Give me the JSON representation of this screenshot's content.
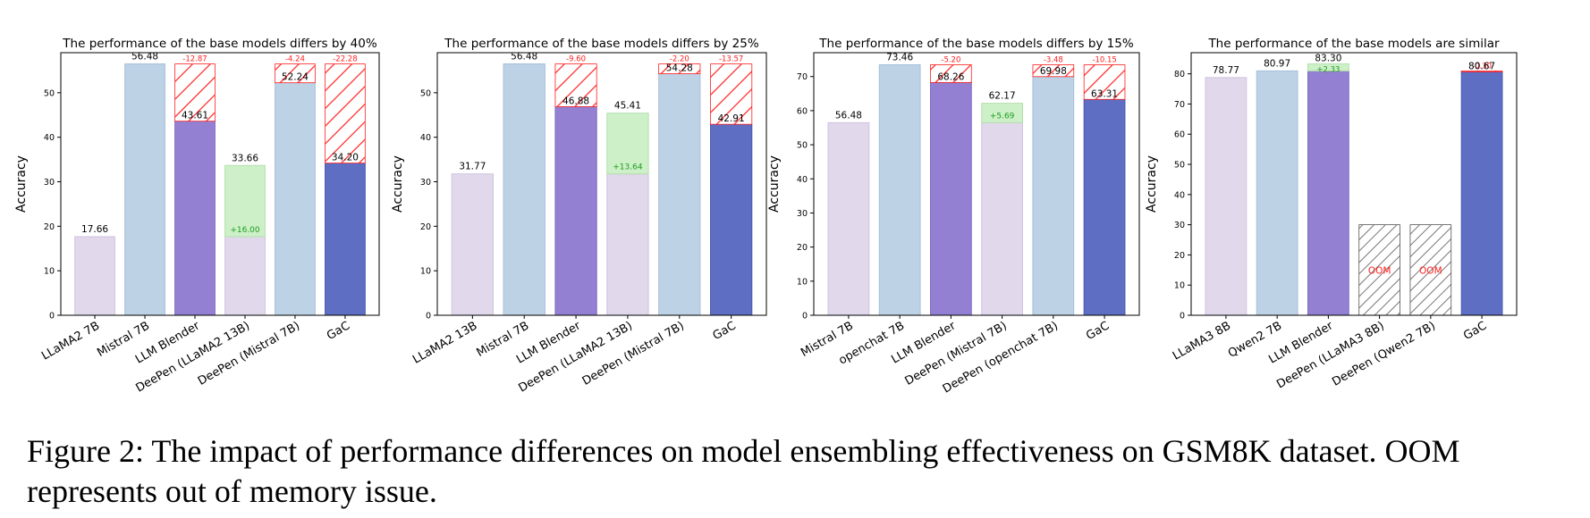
{
  "caption": "Figure 2: The impact of performance differences on model ensembling effectiveness on GSM8K dataset. OOM represents out of memory issue.",
  "colors": {
    "lavender": "#e1d8eb",
    "lightblue": "#bed2e6",
    "purple": "#9480d2",
    "green": "#cdf0c8",
    "darkblue": "#5e6ec2",
    "red": "#ff2020",
    "greentext": "#1d9c1d"
  },
  "chart_data": [
    {
      "type": "bar",
      "title": "The performance of the base models differs by 40%",
      "ylabel": "Accuracy",
      "ylim": [
        0,
        59
      ],
      "yticks": [
        0,
        10,
        20,
        30,
        40,
        50
      ],
      "categories": [
        "LLaMA2 7B",
        "Mistral 7B",
        "LLM Blender",
        "DeePen (LLaMA2 13B)",
        "DeePen (Mistral 7B)",
        "GaC"
      ],
      "bars": [
        {
          "value": 17.66,
          "label": "17.66",
          "color": "lavender"
        },
        {
          "value": 56.48,
          "label": "56.48",
          "color": "lightblue"
        },
        {
          "value": 43.61,
          "label": "43.61",
          "color": "purple",
          "base": 56.48,
          "delta": "-12.87"
        },
        {
          "value": 33.66,
          "label": "33.66",
          "color": "green",
          "base": 17.66,
          "delta": "+16.00",
          "base_color": "lavender"
        },
        {
          "value": 52.24,
          "label": "52.24",
          "color": "lightblue",
          "base": 56.48,
          "delta": "-4.24"
        },
        {
          "value": 34.2,
          "label": "34.20",
          "color": "darkblue",
          "base": 56.48,
          "delta": "-22.28"
        }
      ]
    },
    {
      "type": "bar",
      "title": "The performance of the base models differs by 25%",
      "ylabel": "Accuracy",
      "ylim": [
        0,
        59
      ],
      "yticks": [
        0,
        10,
        20,
        30,
        40,
        50
      ],
      "categories": [
        "LLaMA2 13B",
        "Mistral 7B",
        "LLM Blender",
        "DeePen (LLaMA2 13B)",
        "DeePen (Mistral 7B)",
        "GaC"
      ],
      "bars": [
        {
          "value": 31.77,
          "label": "31.77",
          "color": "lavender"
        },
        {
          "value": 56.48,
          "label": "56.48",
          "color": "lightblue"
        },
        {
          "value": 46.88,
          "label": "46.88",
          "color": "purple",
          "base": 56.48,
          "delta": "-9.60"
        },
        {
          "value": 45.41,
          "label": "45.41",
          "color": "green",
          "base": 31.77,
          "delta": "+13.64",
          "base_color": "lavender"
        },
        {
          "value": 54.28,
          "label": "54.28",
          "color": "lightblue",
          "base": 56.48,
          "delta": "-2.20"
        },
        {
          "value": 42.91,
          "label": "42.91",
          "color": "darkblue",
          "base": 56.48,
          "delta": "-13.57"
        }
      ]
    },
    {
      "type": "bar",
      "title": "The performance of the base models differs by 15%",
      "ylabel": "Accuracy",
      "ylim": [
        0,
        77
      ],
      "yticks": [
        0,
        10,
        20,
        30,
        40,
        50,
        60,
        70
      ],
      "categories": [
        "Mistral 7B",
        "openchat 7B",
        "LLM Blender",
        "DeePen (Mistral 7B)",
        "DeePen (openchat 7B)",
        "GaC"
      ],
      "bars": [
        {
          "value": 56.48,
          "label": "56.48",
          "color": "lavender"
        },
        {
          "value": 73.46,
          "label": "73.46",
          "color": "lightblue"
        },
        {
          "value": 68.26,
          "label": "68.26",
          "color": "purple",
          "base": 73.46,
          "delta": "-5.20"
        },
        {
          "value": 62.17,
          "label": "62.17",
          "color": "green",
          "base": 56.48,
          "delta": "+5.69",
          "base_color": "lavender"
        },
        {
          "value": 69.98,
          "label": "69.98",
          "color": "lightblue",
          "base": 73.46,
          "delta": "-3.48"
        },
        {
          "value": 63.31,
          "label": "63.31",
          "color": "darkblue",
          "base": 73.46,
          "delta": "-10.15"
        }
      ]
    },
    {
      "type": "bar",
      "title": "The performance of the base models are similar",
      "ylabel": "Accuracy",
      "ylim": [
        0,
        87
      ],
      "yticks": [
        0,
        10,
        20,
        30,
        40,
        50,
        60,
        70,
        80
      ],
      "categories": [
        "LLaMA3 8B",
        "Qwen2 7B",
        "LLM Blender",
        "DeePen (LLaMA3 8B)",
        "DeePen (Qwen2 7B)",
        "GaC"
      ],
      "bars": [
        {
          "value": 78.77,
          "label": "78.77",
          "color": "lavender"
        },
        {
          "value": 80.97,
          "label": "80.97",
          "color": "lightblue"
        },
        {
          "value": 83.3,
          "label": "83.30",
          "color": "purple",
          "base": 80.97,
          "delta": "+2.33"
        },
        {
          "value": 30,
          "label": "OOM",
          "color": "oom"
        },
        {
          "value": 30,
          "label": "OOM",
          "color": "oom"
        },
        {
          "value": 80.67,
          "label": "80.67",
          "color": "darkblue",
          "base": 80.97,
          "delta": "-0.30"
        }
      ]
    }
  ]
}
